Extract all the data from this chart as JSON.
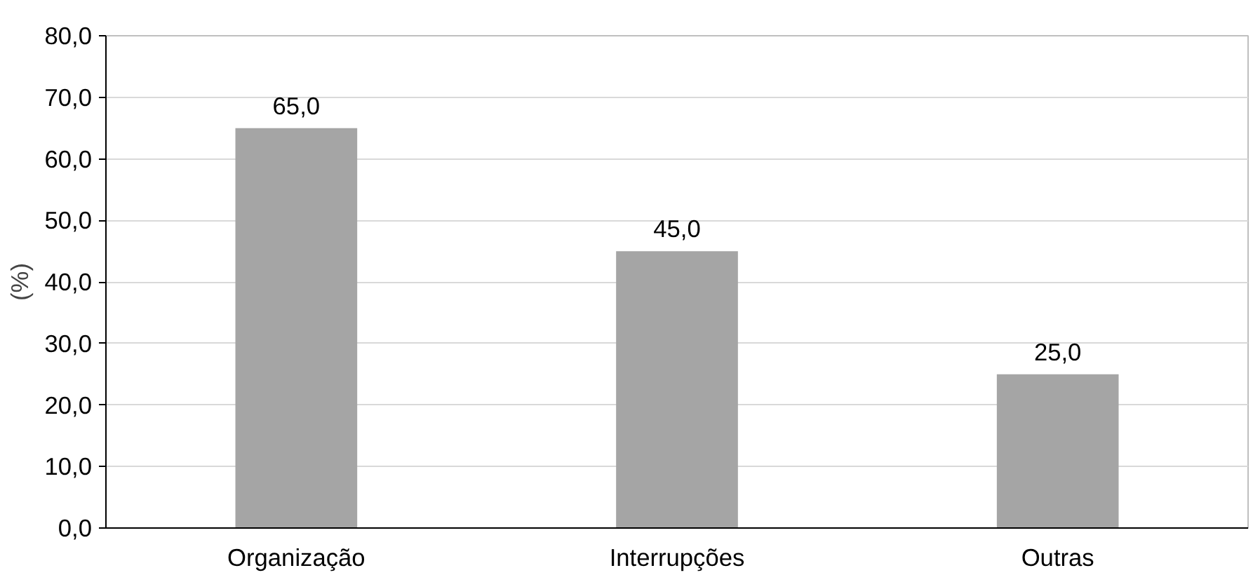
{
  "chart_data": {
    "type": "bar",
    "ylabel": "(%)",
    "categories": [
      "Organização",
      "Interrupções",
      "Outras"
    ],
    "values": [
      65.0,
      45.0,
      25.0
    ],
    "color": "#a5a5a5",
    "value_labels": [
      "65,0",
      "45,0",
      "25,0"
    ],
    "ylim": [
      0,
      80
    ],
    "yticks": [
      {
        "value": 0,
        "label": "0,0"
      },
      {
        "value": 10,
        "label": "10,0"
      },
      {
        "value": 20,
        "label": "20,0"
      },
      {
        "value": 30,
        "label": "30,0"
      },
      {
        "value": 40,
        "label": "40,0"
      },
      {
        "value": 50,
        "label": "50,0"
      },
      {
        "value": 60,
        "label": "60,0"
      },
      {
        "value": 70,
        "label": "70,0"
      },
      {
        "value": 80,
        "label": "80,0"
      }
    ],
    "grid": "y"
  }
}
